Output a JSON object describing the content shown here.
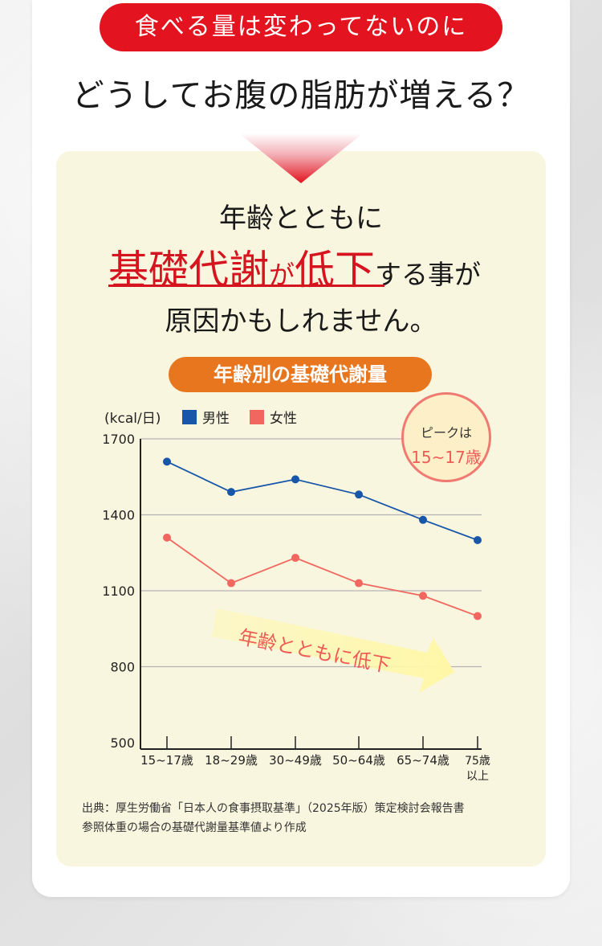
{
  "header": {
    "pill_text": "食べる量は変わってないのに",
    "headline": "どうしてお腹の脂肪が増える？"
  },
  "panel": {
    "line1": "年齢とともに",
    "line2_a": "基礎代謝",
    "line2_b": "が",
    "line2_c": "低下",
    "line2_d": "する事が",
    "line3": "原因かもしれません。",
    "chart_title": "年齢別の基礎代謝量",
    "peak_label": "ピークは",
    "peak_value": "15~17歳",
    "trend_arrow_text": "年齢とともに低下",
    "source_lines": [
      "出典：厚生労働省「日本人の食事摂取基準」（2025年版）策定検討会報告書",
      "参照体重の場合の基礎代謝量基準値より作成"
    ]
  },
  "colors": {
    "red": "#e3141f",
    "orange": "#e8761e",
    "male": "#1756a9",
    "female": "#f1675f",
    "panel_bg": "#f9f6df"
  },
  "chart_data": {
    "type": "line",
    "unit_label": "(kcal/日)",
    "categories": [
      "15~17歳",
      "18~29歳",
      "30~49歳",
      "50~64歳",
      "65~74歳",
      "75歳以上"
    ],
    "category_lines": [
      [
        "15~17歳"
      ],
      [
        "18~29歳"
      ],
      [
        "30~49歳"
      ],
      [
        "50~64歳"
      ],
      [
        "65~74歳"
      ],
      [
        "75歳",
        "以上"
      ]
    ],
    "series": [
      {
        "name": "男性",
        "color": "#1756a9",
        "values": [
          1610,
          1490,
          1540,
          1480,
          1380,
          1300
        ]
      },
      {
        "name": "女性",
        "color": "#f1675f",
        "values": [
          1310,
          1130,
          1230,
          1130,
          1080,
          1000
        ]
      }
    ],
    "ylim": [
      500,
      1700
    ],
    "yticks": [
      500,
      800,
      1100,
      1400,
      1700
    ],
    "grid": true,
    "legend": "top-left"
  }
}
